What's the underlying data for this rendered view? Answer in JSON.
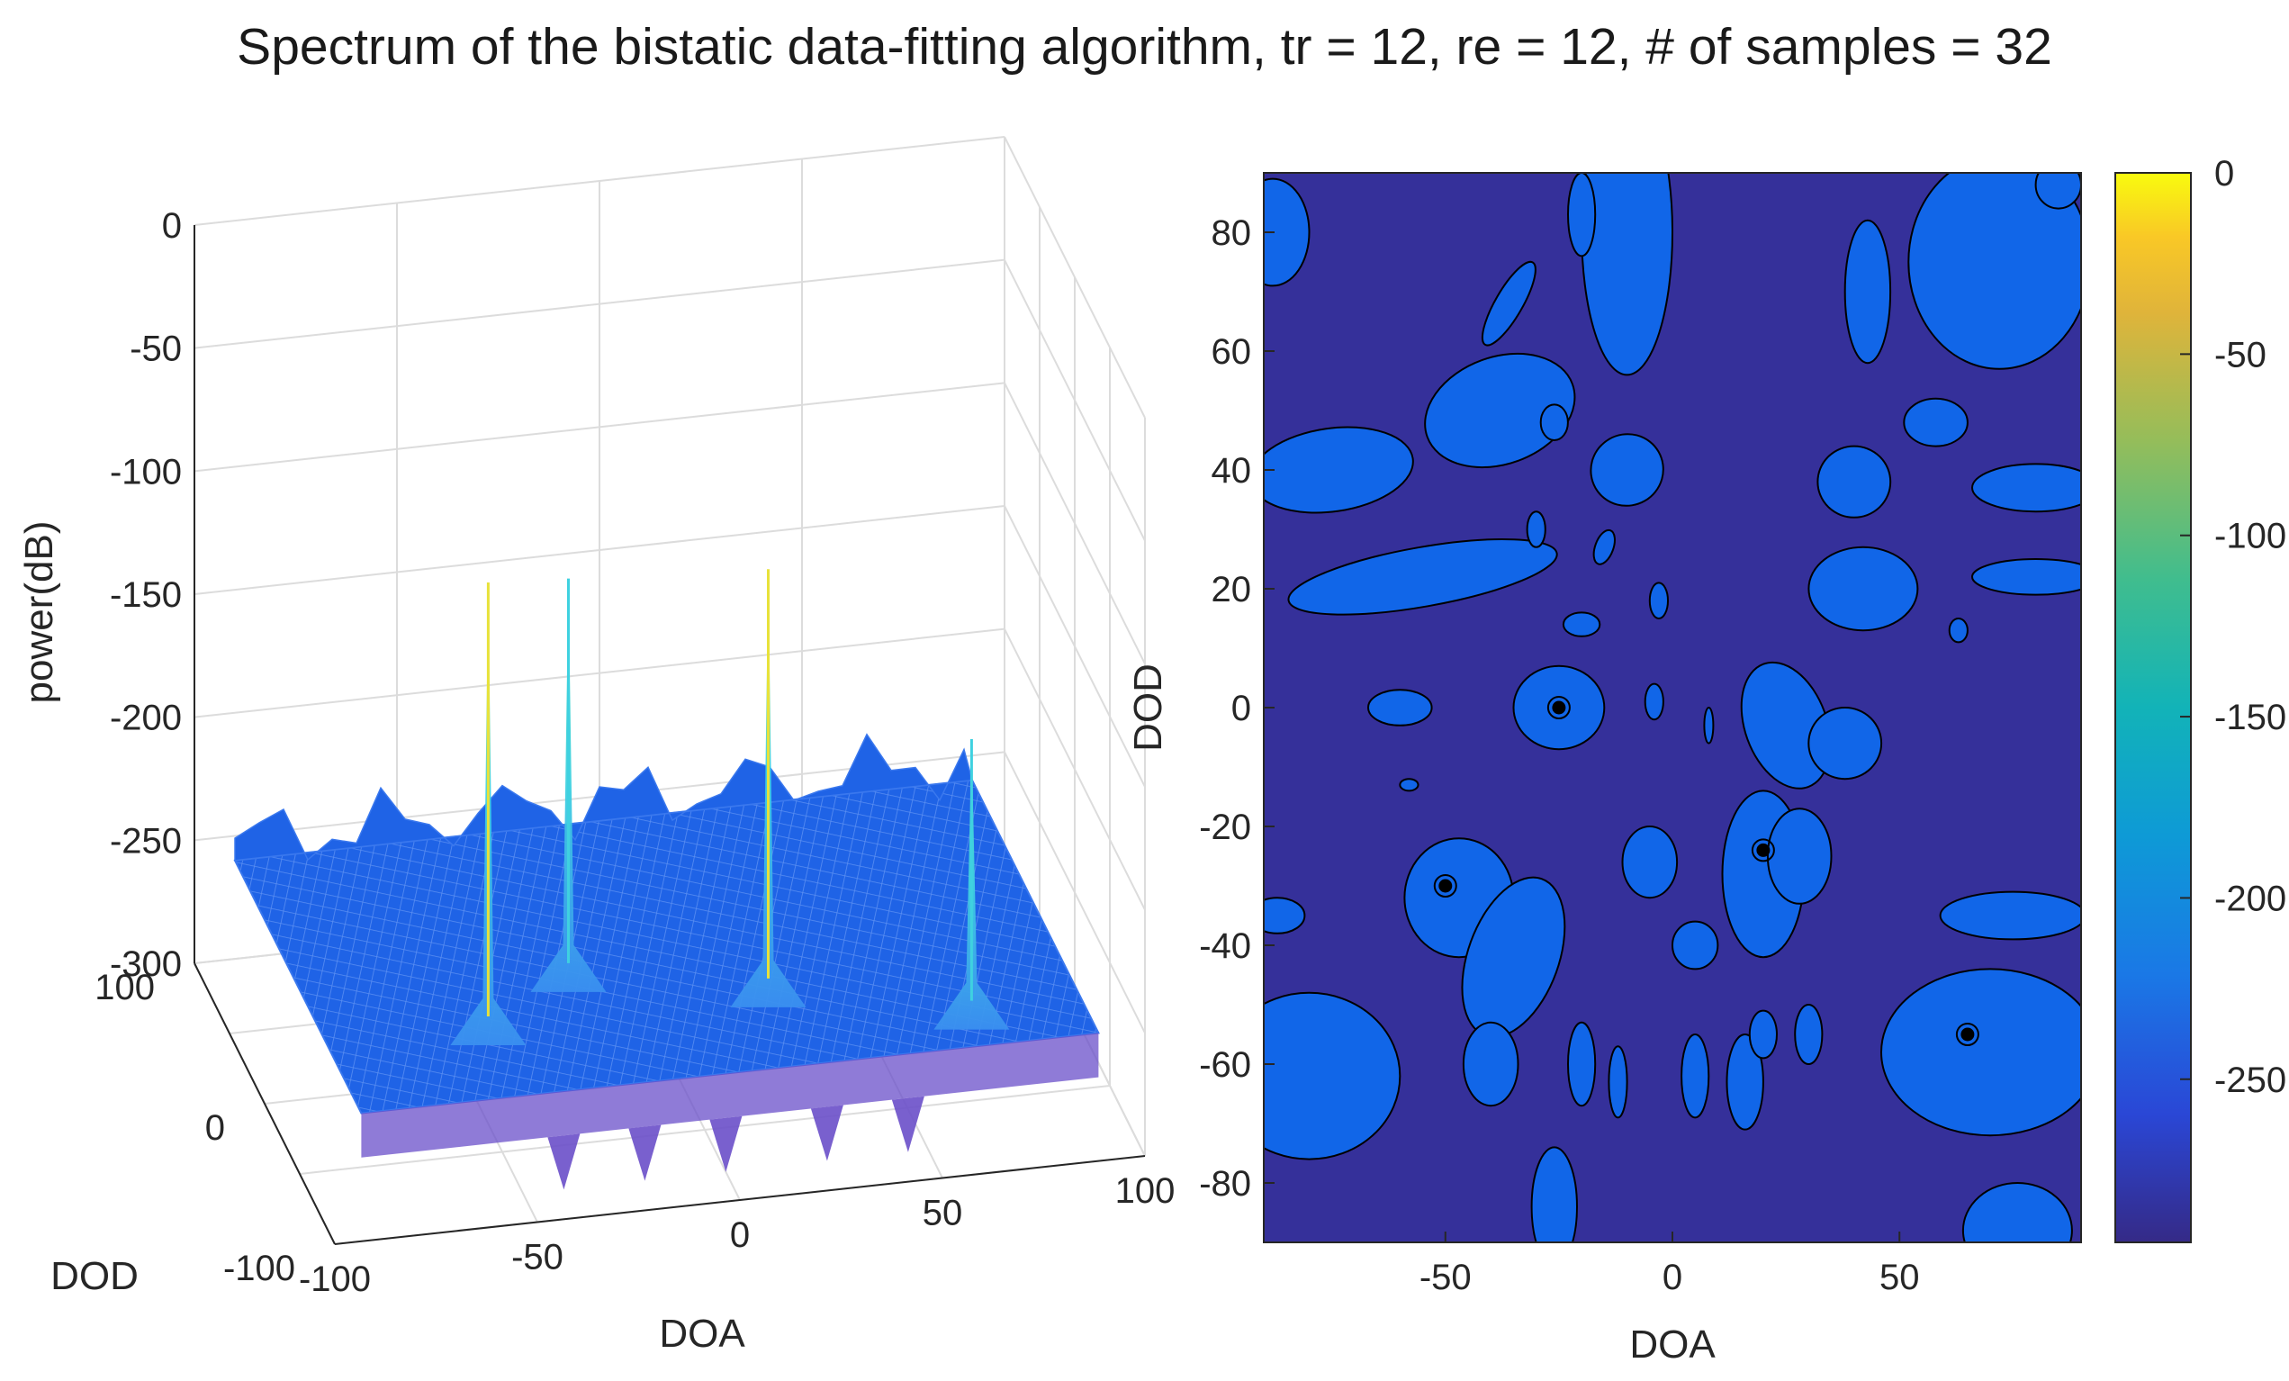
{
  "figure_title": "Spectrum of the bistatic data-fitting algorithm, tr = 12, re = 12, # of samples = 32",
  "colors": {
    "surface": "#1f63e6",
    "surface_edge": "#3a78ee",
    "surface_low": "#6a4fc9",
    "peak_cyan": "#3fd1e0",
    "peak_yellow": "#e8e23a",
    "contour_background": "#35309a",
    "contour_region": "#1166e8",
    "contour_line": "#000000"
  },
  "chart_data": [
    {
      "type": "surface3d",
      "zlabel": "power(dB)",
      "xlabel": "DOA",
      "ylabel": "DOD",
      "zlim": [
        -300,
        0
      ],
      "xlim": [
        -100,
        100
      ],
      "ylim": [
        -100,
        100
      ],
      "z_ticks": [
        "0",
        "-50",
        "-100",
        "-150",
        "-200",
        "-250",
        "-300"
      ],
      "x_ticks": [
        "-100",
        "-50",
        "0",
        "50",
        "100"
      ],
      "y_ticks": [
        "100",
        "0",
        "-100"
      ],
      "floor_level": -260,
      "peaks": [
        {
          "doa": -50,
          "dod": -30,
          "power": -80
        },
        {
          "doa": -25,
          "dod": 0,
          "power": -100
        },
        {
          "doa": 20,
          "dod": -25,
          "power": -90
        },
        {
          "doa": 65,
          "dod": -55,
          "power": -150
        }
      ]
    },
    {
      "type": "contour",
      "xlabel": "DOA",
      "ylabel": "DOD",
      "xlim": [
        -90,
        90
      ],
      "ylim": [
        -90,
        90
      ],
      "x_ticks": [
        "-50",
        "0",
        "50"
      ],
      "y_ticks": [
        "80",
        "60",
        "40",
        "20",
        "0",
        "-20",
        "-40",
        "-60",
        "-80"
      ],
      "colorbar_ticks": [
        "0",
        "-50",
        "-100",
        "-150",
        "-200",
        "-250"
      ],
      "colorbar_range": [
        -295,
        0
      ],
      "background_level": -290,
      "region_level": -260,
      "peak_markers": [
        {
          "doa": -50,
          "dod": -30
        },
        {
          "doa": -25,
          "dod": 0
        },
        {
          "doa": 20,
          "dod": -24
        },
        {
          "doa": 65,
          "dod": -55
        }
      ]
    }
  ]
}
